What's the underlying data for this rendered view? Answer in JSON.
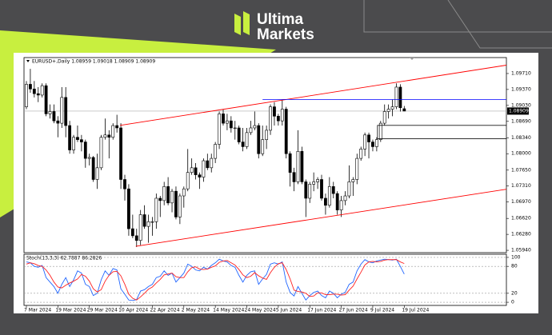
{
  "brand": {
    "line1": "Ultima",
    "line2": "Markets"
  },
  "chart_data": [
    {
      "type": "candlestick",
      "title": "EURUSD+,Daily 1.08959 1.09018 1.08909 1.08909",
      "categories": [
        "7 Mar 2024",
        null,
        null,
        null,
        null,
        null,
        null,
        null,
        "19 Mar 2024",
        null,
        null,
        null,
        null,
        null,
        null,
        null,
        "29 Mar 2024",
        null,
        null,
        null,
        null,
        null,
        null,
        null,
        "10 Apr 2024",
        null,
        null,
        null,
        null,
        null,
        null,
        null,
        "22 Apr 2024",
        null,
        null,
        null,
        null,
        null,
        null,
        null,
        "2 May 2024",
        null,
        null,
        null,
        null,
        null,
        null,
        null,
        "14 May 2024",
        null,
        null,
        null,
        null,
        null,
        null,
        null,
        "24 May 2024",
        null,
        null,
        null,
        null,
        null,
        null,
        null,
        "5 Jun 2024",
        null,
        null,
        null,
        null,
        null,
        null,
        null,
        "17 Jun 2024",
        null,
        null,
        null,
        null,
        null,
        null,
        null,
        "27 Jun 2024",
        null,
        null,
        null,
        null,
        null,
        null,
        null,
        "9 Jul 2024",
        null,
        null,
        null,
        null,
        null,
        null,
        null,
        "19 Jul 2024"
      ],
      "ohlc": [
        [
          1.09,
          1.0955,
          1.0895,
          1.0948
        ],
        [
          1.0948,
          1.0981,
          1.093,
          1.0938
        ],
        [
          1.0938,
          1.0955,
          1.092,
          1.0928
        ],
        [
          1.0928,
          1.0942,
          1.091,
          1.0925
        ],
        [
          1.0925,
          1.095,
          1.092,
          1.0945
        ],
        [
          1.0945,
          1.095,
          1.088,
          1.0885
        ],
        [
          1.0885,
          1.0905,
          1.0875,
          1.089
        ],
        [
          1.089,
          1.0905,
          1.0865,
          1.087
        ],
        [
          1.087,
          1.088,
          1.0835,
          1.0865
        ],
        [
          1.0865,
          1.0942,
          1.0855,
          1.092
        ],
        [
          1.092,
          1.0942,
          1.0835,
          1.086
        ],
        [
          1.086,
          1.087,
          1.08,
          1.0808
        ],
        [
          1.0808,
          1.084,
          1.08,
          1.0835
        ],
        [
          1.0835,
          1.086,
          1.0825,
          1.083
        ],
        [
          1.083,
          1.084,
          1.0805,
          1.0825
        ],
        [
          1.0825,
          1.083,
          1.077,
          1.079
        ],
        [
          1.079,
          1.08,
          1.0775,
          1.0792
        ],
        [
          1.0792,
          1.0795,
          1.074,
          1.0745
        ],
        [
          1.0745,
          1.08,
          1.0725,
          1.077
        ],
        [
          1.077,
          1.084,
          1.0765,
          1.0835
        ],
        [
          1.0835,
          1.0875,
          1.083,
          1.084
        ],
        [
          1.084,
          1.085,
          1.079,
          1.0835
        ],
        [
          1.0835,
          1.0865,
          1.083,
          1.086
        ],
        [
          1.086,
          1.0883,
          1.0845,
          1.0855
        ],
        [
          1.0855,
          1.0865,
          1.0725,
          1.0745
        ],
        [
          1.0745,
          1.0755,
          1.07,
          1.0725
        ],
        [
          1.0725,
          1.0735,
          1.0625,
          1.064
        ],
        [
          1.064,
          1.067,
          1.062,
          1.0625
        ],
        [
          1.0625,
          1.064,
          1.0601,
          1.0615
        ],
        [
          1.0615,
          1.068,
          1.0605,
          1.067
        ],
        [
          1.067,
          1.069,
          1.064,
          1.0645
        ],
        [
          1.0645,
          1.067,
          1.061,
          1.0655
        ],
        [
          1.0655,
          1.0665,
          1.0625,
          1.0655
        ],
        [
          1.0655,
          1.0715,
          1.064,
          1.0705
        ],
        [
          1.0705,
          1.071,
          1.0665,
          1.07
        ],
        [
          1.07,
          1.074,
          1.069,
          1.073
        ],
        [
          1.073,
          1.075,
          1.069,
          1.0695
        ],
        [
          1.0695,
          1.0725,
          1.0675,
          1.072
        ],
        [
          1.072,
          1.073,
          1.066,
          1.0665
        ],
        [
          1.0665,
          1.0715,
          1.065,
          1.071
        ],
        [
          1.071,
          1.073,
          1.0685,
          1.0725
        ],
        [
          1.0725,
          1.081,
          1.072,
          1.076
        ],
        [
          1.076,
          1.079,
          1.0755,
          1.077
        ],
        [
          1.077,
          1.078,
          1.0745,
          1.0755
        ],
        [
          1.0755,
          1.076,
          1.0725,
          1.075
        ],
        [
          1.075,
          1.079,
          1.074,
          1.0785
        ],
        [
          1.0785,
          1.08,
          1.0765,
          1.077
        ],
        [
          1.077,
          1.08,
          1.076,
          1.079
        ],
        [
          1.079,
          1.0825,
          1.078,
          1.082
        ],
        [
          1.082,
          1.089,
          1.081,
          1.0885
        ],
        [
          1.0885,
          1.0895,
          1.086,
          1.0865
        ],
        [
          1.0865,
          1.0885,
          1.085,
          1.087
        ],
        [
          1.087,
          1.088,
          1.0845,
          1.0855
        ],
        [
          1.0855,
          1.087,
          1.083,
          1.0855
        ],
        [
          1.0855,
          1.086,
          1.082,
          1.0825
        ],
        [
          1.0825,
          1.0855,
          1.0805,
          1.0815
        ],
        [
          1.0815,
          1.0855,
          1.081,
          1.0845
        ],
        [
          1.0845,
          1.087,
          1.084,
          1.0855
        ],
        [
          1.0855,
          1.089,
          1.085,
          1.086
        ],
        [
          1.086,
          1.0865,
          1.079,
          1.08
        ],
        [
          1.08,
          1.086,
          1.0795,
          1.083
        ],
        [
          1.083,
          1.086,
          1.081,
          1.085
        ],
        [
          1.085,
          1.0905,
          1.084,
          1.09
        ],
        [
          1.09,
          1.091,
          1.086,
          1.088
        ],
        [
          1.088,
          1.0885,
          1.086,
          1.087
        ],
        [
          1.087,
          1.0915,
          1.086,
          1.0895
        ],
        [
          1.0895,
          1.09,
          1.079,
          1.08
        ],
        [
          1.08,
          1.0805,
          1.073,
          1.076
        ],
        [
          1.076,
          1.077,
          1.072,
          1.074
        ],
        [
          1.074,
          1.085,
          1.0735,
          1.0805
        ],
        [
          1.0805,
          1.0815,
          1.0735,
          1.074
        ],
        [
          1.074,
          1.0745,
          1.0665,
          1.0705
        ],
        [
          1.0705,
          1.074,
          1.0695,
          1.0735
        ],
        [
          1.0735,
          1.076,
          1.072,
          1.074
        ],
        [
          1.074,
          1.075,
          1.0725,
          1.0745
        ],
        [
          1.0745,
          1.0755,
          1.07,
          1.0705
        ],
        [
          1.0705,
          1.0715,
          1.067,
          1.069
        ],
        [
          1.069,
          1.075,
          1.0685,
          1.073
        ],
        [
          1.073,
          1.074,
          1.0705,
          1.0715
        ],
        [
          1.0715,
          1.072,
          1.067,
          1.068
        ],
        [
          1.068,
          1.071,
          1.0665,
          1.07
        ],
        [
          1.07,
          1.072,
          1.069,
          1.071
        ],
        [
          1.071,
          1.0775,
          1.0705,
          1.074
        ],
        [
          1.074,
          1.075,
          1.071,
          1.0745
        ],
        [
          1.0745,
          1.08,
          1.0735,
          1.079
        ],
        [
          1.079,
          1.0815,
          1.0785,
          1.081
        ],
        [
          1.081,
          1.0845,
          1.0795,
          1.084
        ],
        [
          1.084,
          1.0845,
          1.079,
          1.0825
        ],
        [
          1.0825,
          1.083,
          1.0805,
          1.0815
        ],
        [
          1.0815,
          1.0835,
          1.0805,
          1.083
        ],
        [
          1.083,
          1.087,
          1.0825,
          1.0865
        ],
        [
          1.0865,
          1.0905,
          1.086,
          1.089
        ],
        [
          1.089,
          1.0905,
          1.0875,
          1.0895
        ],
        [
          1.0895,
          1.0915,
          1.088,
          1.09
        ],
        [
          1.09,
          1.095,
          1.0895,
          1.0942
        ],
        [
          1.0942,
          1.0948,
          1.089,
          1.0898
        ],
        [
          1.08959,
          1.09018,
          1.08909,
          1.08909
        ]
      ],
      "ylim": [
        1.0589,
        1.1005
      ],
      "yticks": [
        {
          "value": 1.0971,
          "label": "1.09710"
        },
        {
          "value": 1.0937,
          "label": "1.09370"
        },
        {
          "value": 1.0903,
          "label": "1.09030"
        },
        {
          "value": 1.0869,
          "label": "1.08690"
        },
        {
          "value": 1.0834,
          "label": "1.08340"
        },
        {
          "value": 1.08,
          "label": "1.08000"
        },
        {
          "value": 1.0765,
          "label": "1.07650"
        },
        {
          "value": 1.0731,
          "label": "1.07310"
        },
        {
          "value": 1.0697,
          "label": "1.06970"
        },
        {
          "value": 1.0662,
          "label": "1.06620"
        },
        {
          "value": 1.0628,
          "label": "1.06280"
        },
        {
          "value": 1.0594,
          "label": "1.05940"
        }
      ],
      "price_line": {
        "value": 1.08909,
        "label": "1.08909"
      },
      "trendlines": [
        {
          "color": "#ff0000",
          "x": [
            23.8,
            122.4
          ],
          "y": [
            1.08604,
            1.09894
          ]
        },
        {
          "color": "#ff0000",
          "x": [
            27.8,
            122.4
          ],
          "y": [
            1.06025,
            1.07248
          ]
        }
      ],
      "levels": [
        {
          "color": "#0000ff",
          "start": 60,
          "value": 1.09157
        }
      ],
      "box": {
        "color": "#000000",
        "start": 89.2,
        "top": 1.08604,
        "bottom": 1.0832
      }
    },
    {
      "type": "line",
      "title": "Stoch(13,3,3) 62.7887 86.2826",
      "ylim": [
        -7,
        107
      ],
      "yticks": [
        0,
        20,
        80,
        100
      ],
      "grid": true,
      "series": [
        {
          "color": "#1e64ff",
          "values": [
            90,
            88,
            80,
            78,
            82,
            55,
            45,
            35,
            20,
            40,
            55,
            35,
            50,
            70,
            65,
            40,
            35,
            15,
            20,
            50,
            70,
            60,
            75,
            72,
            30,
            18,
            5,
            4,
            6,
            25,
            28,
            35,
            40,
            55,
            58,
            70,
            60,
            65,
            45,
            55,
            65,
            85,
            80,
            72,
            70,
            78,
            74,
            82,
            88,
            96,
            92,
            90,
            82,
            78,
            60,
            45,
            60,
            68,
            70,
            40,
            52,
            62,
            85,
            88,
            85,
            90,
            45,
            22,
            14,
            35,
            20,
            5,
            15,
            22,
            25,
            15,
            10,
            25,
            20,
            10,
            18,
            22,
            40,
            45,
            70,
            85,
            95,
            90,
            88,
            92,
            94,
            96,
            95,
            94,
            96,
            80,
            62.7887
          ]
        },
        {
          "color": "#ff2020",
          "values": [
            85,
            88,
            86,
            82,
            80,
            72,
            60,
            45,
            34,
            32,
            38,
            43,
            47,
            52,
            62,
            58,
            47,
            30,
            23,
            28,
            47,
            60,
            68,
            69,
            59,
            40,
            18,
            9,
            5,
            12,
            20,
            29,
            34,
            43,
            51,
            61,
            63,
            65,
            57,
            55,
            55,
            68,
            77,
            79,
            74,
            73,
            74,
            78,
            81,
            89,
            92,
            93,
            88,
            83,
            73,
            61,
            55,
            58,
            66,
            59,
            54,
            51,
            66,
            78,
            86,
            88,
            73,
            52,
            27,
            24,
            23,
            20,
            13,
            14,
            21,
            21,
            17,
            17,
            18,
            18,
            16,
            17,
            27,
            36,
            52,
            67,
            83,
            90,
            91,
            90,
            91,
            94,
            95,
            95,
            95,
            90,
            86.2826
          ]
        }
      ]
    }
  ]
}
